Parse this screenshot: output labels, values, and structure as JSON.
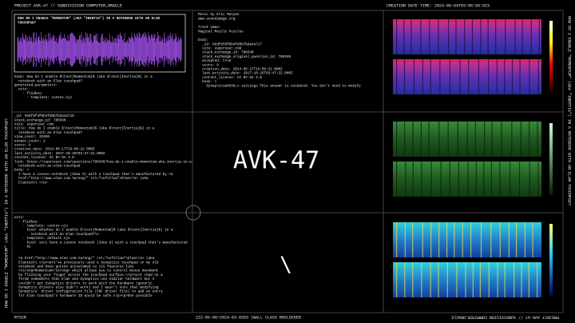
{
  "header": {
    "left": "PROJECT AVK-47 // SUBDIVISION COMPUTER_ORACLE",
    "right": "CREATION DATE TIME: 2024-09-04T03:08:58:023"
  },
  "footer": {
    "left": "RTSCR",
    "center": "222-05-06~2024-03-0203 |WALL CLASS NOSLOCKED",
    "right": "PROJECT AVK-47 // SUBDIVISION COMPUTER_ORACLE"
  },
  "side": {
    "left": "HOW DO I ENABLE \"MOMENTUM\" (AKA \"INERTIA\") IN A NOTEBOOK WITH AN ELAN TOUCHPAD?",
    "right": "HOW DO I ENABLE \"MOMENTUM\" (AKA \"INERTIA\") IN A NOTEBOOK WITH AN ELAN TOUCHPAD?"
  },
  "center": {
    "title": "AVK-47",
    "glyph": "\\"
  },
  "question_box": {
    "title": [
      "HOW DO I ENABLE \"MOMENTUM\" (AKA \"INERTIA\") IN A NOTEBOOK WITH AN ELAN",
      "TOUCHPAD?"
    ]
  },
  "blocks": {
    "question_body": [
      "body: How do I enable $\\text{Momentum}$ (aka $\\text{Inertia}$) in a",
      "  notebook with an Elan touchpad?",
      "generated_parameters:",
      "  ectx:",
      "    - flidhes:",
      "      - template: contex.njs"
    ],
    "music": [
      "Music by Eric Matyas",
      "www.soundimage.org"
    ],
    "track": [
      "Track name:",
      "Magical Mezzle Puzzles"
    ],
    "answer": [
      "body:",
      "  _id: 66df8fdf9b4fd6b7bda4a717",
      "  site: superuser.com",
      "  stack_exchange_id: 780340",
      "  stack_exchange_original_question_id: 780340",
      "  accepted: true",
      "  score: 9",
      "  creation_date: 2014-06-17T16:06:31.000Z",
      "  last_activity_date: 2017-10-26T03:47:22.000Z",
      "  content_license: CC BY-SA 3.0",
      "  body: >",
      "    Synaptics&#039;s settings This answer is outdated. You don't need to modify"
    ],
    "question_meta": [
      "_id: 66df8fdf9b4fd6b7bda4a716",
      "stack_exchange_id: 780340",
      "site: superuser.com",
      "title: How do I enable $\\text{Momentum}$ (aka $\\text{Inertia}$) in a",
      "  notebook with an Elan touchpad?",
      "view_count: 32469",
      "answer_count: 2",
      "score: 8",
      "creation_date: 2014-06-17T16:06:22.000Z",
      "last_activity_date: 2017-10-26T03:47:22.000Z",
      "content_license: CC BY-SA 3.0",
      "link: https://superuser.com/questions/780340/how-do-i-enable-momentum-aka-inertia-in-a-",
      "  notebook-with-an-elan-touchpad",
      "body: >",
      "  I have a Lenovo notebook (Idea 9) with a touchpad that's manufactured by <a",
      "  href=\"http://www.elan.com.tw/eng/\" rel=\"nofollow\">Elan</a> (aka",
      "  Elantech).</p>"
    ],
    "context": [
      "ectx:",
      "  - flidhes:",
      "    - template: contex.njs",
      "      kind: ehiohes do I enable $\\text{Momentum}$ (aka $\\text{Inertia}$) in a",
      "        notebook with an Elan touchpad?\\n",
      "    - template: default.njs",
      "      kind: sori have a Lenovo notebook (Idea 9) with a touchpad that's manufactured",
      "      by"
    ],
    "context_body": [
      "  <a href=\"http://www.elan.com.tw/eng/\" rel=\"nofollow\">Elan</a> (aka",
      "  Elantech).</p><p>I've previously used a Synaptics touchpad on my old",
      "  notebook and have gotten accustomed to its features like",
      "  <strong>Momentum</strong> which allows you to control mouse movement",
      "  by flicking your finger across the touchpad surface.</p><p>I read on a",
      "  forum somewhere that Elan and Synaptics use similar hardware but I",
      "  couldn't get Synaptics drivers to work with the hardware (generic",
      "  Synaptics drivers also didn't work) and I wasn't sure that modifying",
      "  Synaptics' driver configuration file (CNF driver file) to add an entry",
      "  for Elan touchpad's hardware ID would be safe.</p><p>One possible"
    ]
  }
}
